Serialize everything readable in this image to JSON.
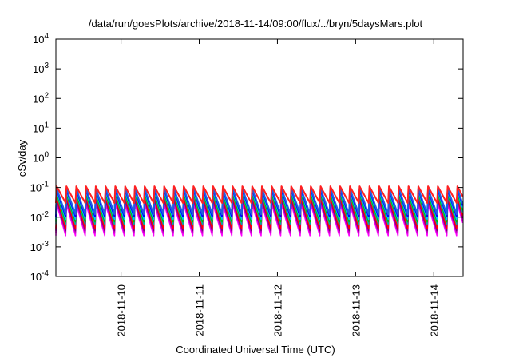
{
  "chart_data": {
    "type": "line",
    "title": "/data/run/goesPlots/archive/2018-11-14/09:00/flux/../bryn/5daysMars.plot",
    "xlabel": "Coordinated Universal Time (UTC)",
    "ylabel": "cSv/day",
    "yscale": "log",
    "ylim": [
      0.0001,
      10000
    ],
    "xlim": [
      "2018-11-09 04:00",
      "2018-11-14 09:00"
    ],
    "y_ticks": [
      {
        "mantissa": "10",
        "exp": "-4"
      },
      {
        "mantissa": "10",
        "exp": "-3"
      },
      {
        "mantissa": "10",
        "exp": "-2"
      },
      {
        "mantissa": "10",
        "exp": "-1"
      },
      {
        "mantissa": "10",
        "exp": "0"
      },
      {
        "mantissa": "10",
        "exp": "1"
      },
      {
        "mantissa": "10",
        "exp": "2"
      },
      {
        "mantissa": "10",
        "exp": "3"
      },
      {
        "mantissa": "10",
        "exp": "4"
      }
    ],
    "x_ticks": [
      "2018-11-10",
      "2018-11-11",
      "2018-11-12",
      "2018-11-13",
      "2018-11-14"
    ],
    "grid": false,
    "legend": "none",
    "cycle_hours": 3,
    "series": [
      {
        "color": "#ff00ff",
        "peak": 0.028,
        "trough": 0.0024
      },
      {
        "color": "#cc00cc",
        "peak": 0.034,
        "trough": 0.0029
      },
      {
        "color": "#800080",
        "peak": 0.04,
        "trough": 0.0035
      },
      {
        "color": "#ff0000",
        "peak": 0.048,
        "trough": 0.0042
      },
      {
        "color": "#00aaaa",
        "peak": 0.058,
        "trough": 0.0058
      },
      {
        "color": "#00c000",
        "peak": 0.064,
        "trough": 0.007
      },
      {
        "color": "#00bfff",
        "peak": 0.075,
        "trough": 0.0085
      },
      {
        "color": "#0000ff",
        "peak": 0.088,
        "trough": 0.0105
      },
      {
        "color": "#2060e0",
        "peak": 0.095,
        "trough": 0.0125
      },
      {
        "color": "#ff2020",
        "peak": 0.11,
        "trough": 0.03
      }
    ]
  }
}
